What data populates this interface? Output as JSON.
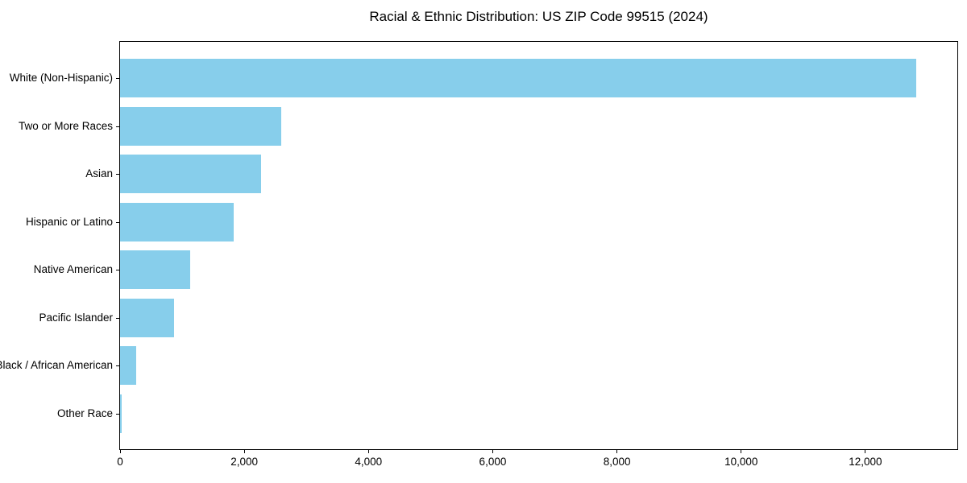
{
  "title": "Racial & Ethnic Distribution: US ZIP Code 99515 (2024)",
  "chart_data": {
    "type": "bar",
    "orientation": "horizontal",
    "title": "Racial & Ethnic Distribution: US ZIP Code 99515 (2024)",
    "categories": [
      "White (Non-Hispanic)",
      "Two or More Races",
      "Asian",
      "Hispanic or Latino",
      "Native American",
      "Pacific Islander",
      "Black / African American",
      "Other Race"
    ],
    "values": [
      12820,
      2590,
      2270,
      1830,
      1130,
      870,
      260,
      30
    ],
    "bar_color": "#87CEEB",
    "xlabel": "",
    "ylabel": "",
    "xlim": [
      0,
      13480
    ],
    "x_ticks": [
      0,
      2000,
      4000,
      6000,
      8000,
      10000,
      12000
    ],
    "x_tick_labels": [
      "0",
      "2,000",
      "4,000",
      "6,000",
      "8,000",
      "10,000",
      "12,000"
    ],
    "grid": false,
    "legend": false
  }
}
